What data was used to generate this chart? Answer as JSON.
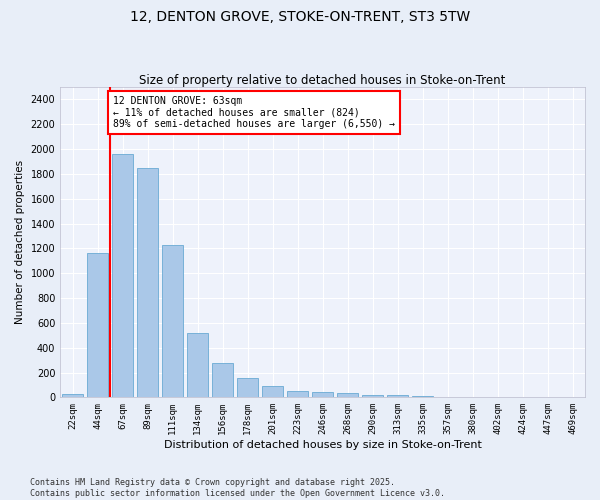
{
  "title": "12, DENTON GROVE, STOKE-ON-TRENT, ST3 5TW",
  "subtitle": "Size of property relative to detached houses in Stoke-on-Trent",
  "xlabel": "Distribution of detached houses by size in Stoke-on-Trent",
  "ylabel": "Number of detached properties",
  "categories": [
    "22sqm",
    "44sqm",
    "67sqm",
    "89sqm",
    "111sqm",
    "134sqm",
    "156sqm",
    "178sqm",
    "201sqm",
    "223sqm",
    "246sqm",
    "268sqm",
    "290sqm",
    "313sqm",
    "335sqm",
    "357sqm",
    "380sqm",
    "402sqm",
    "424sqm",
    "447sqm",
    "469sqm"
  ],
  "values": [
    28,
    1160,
    1960,
    1850,
    1230,
    515,
    275,
    155,
    90,
    50,
    42,
    32,
    22,
    15,
    8,
    5,
    3,
    2,
    2,
    1,
    1
  ],
  "bar_color": "#aac8e8",
  "bar_edge_color": "#6aaad4",
  "vline_color": "red",
  "vline_x": 1.5,
  "annotation_text": "12 DENTON GROVE: 63sqm\n← 11% of detached houses are smaller (824)\n89% of semi-detached houses are larger (6,550) →",
  "annotation_box_color": "white",
  "annotation_box_edge_color": "red",
  "ylim": [
    0,
    2500
  ],
  "yticks": [
    0,
    200,
    400,
    600,
    800,
    1000,
    1200,
    1400,
    1600,
    1800,
    2000,
    2200,
    2400
  ],
  "bg_color": "#e8eef8",
  "plot_bg_color": "#eef2fb",
  "footer": "Contains HM Land Registry data © Crown copyright and database right 2025.\nContains public sector information licensed under the Open Government Licence v3.0.",
  "title_fontsize": 10,
  "subtitle_fontsize": 8.5,
  "annotation_fontsize": 7,
  "footer_fontsize": 6,
  "ylabel_fontsize": 7.5,
  "xlabel_fontsize": 8,
  "tick_fontsize": 6.5,
  "ytick_fontsize": 7
}
